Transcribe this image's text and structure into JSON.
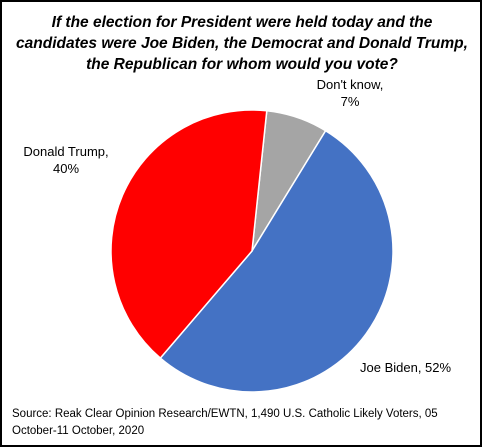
{
  "chart_data": {
    "type": "pie",
    "title": "If the election for President were held today and the candidates were Joe Biden, the Democrat and Donald Trump, the Republican for whom would you vote?",
    "slices": [
      {
        "label": "Joe Biden",
        "value": 52,
        "value_label": "52%",
        "display": "Joe Biden, 52%",
        "color": "#4472C4"
      },
      {
        "label": "Donald Trump",
        "value": 40,
        "value_label": "40%",
        "display": "Donald Trump,",
        "color": "#FF0000"
      },
      {
        "label": "Don't know",
        "value": 7,
        "value_label": "7%",
        "display": "Don't know,",
        "color": "#A5A5A5"
      }
    ],
    "source": "Source: Reak Clear Opinion Research/EWTN, 1,490 U.S. Catholic Likely Voters, 05 October-11 October, 2020"
  }
}
